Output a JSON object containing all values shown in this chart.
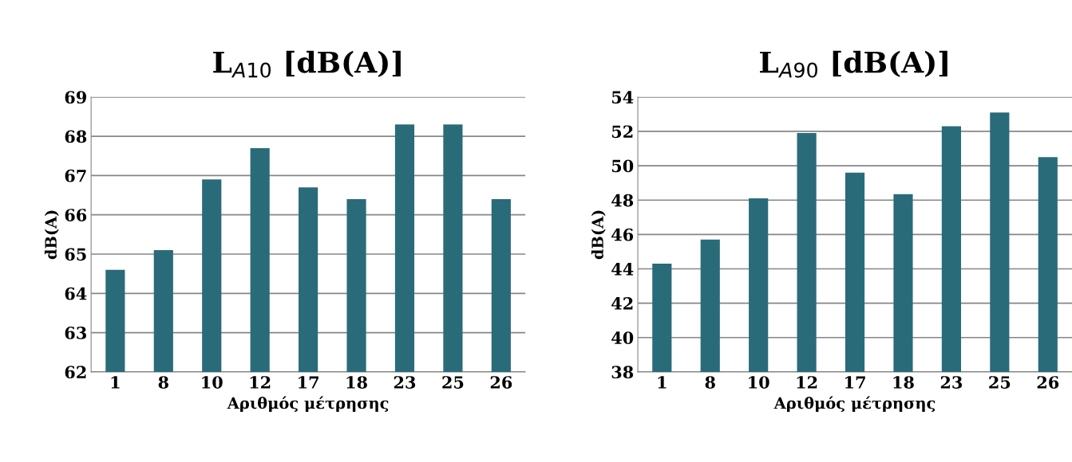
{
  "chart_data": [
    {
      "type": "bar",
      "title": "L$_{A10}$ [dB(A)]",
      "xlabel": "Αριθμός μέτρησης",
      "ylabel": "dB(A)",
      "categories": [
        "1",
        "8",
        "10",
        "12",
        "17",
        "18",
        "23",
        "25",
        "26"
      ],
      "series": [
        {
          "color": "#2a6b7a",
          "values": [
            64.6,
            65.1,
            66.9,
            67.7,
            66.7,
            66.4,
            68.3,
            68.3,
            66.4
          ]
        }
      ],
      "ylim": [
        62,
        69
      ],
      "yticks": [
        62,
        63,
        64,
        65,
        66,
        67,
        68,
        69
      ],
      "grid": "y",
      "legend": false
    },
    {
      "type": "bar",
      "title": "L$_{A90}$ [dB(A)]",
      "xlabel": "Αριθμός μέτρησης",
      "ylabel": "dB(A)",
      "categories": [
        "1",
        "8",
        "10",
        "12",
        "17",
        "18",
        "23",
        "25",
        "26"
      ],
      "series": [
        {
          "color": "#2a6b7a",
          "values": [
            44.3,
            45.7,
            48.1,
            51.9,
            49.6,
            48.35,
            52.3,
            53.1,
            50.5
          ]
        }
      ],
      "ylim": [
        38,
        54
      ],
      "yticks": [
        38,
        40,
        42,
        44,
        46,
        48,
        50,
        52,
        54
      ],
      "grid": "y",
      "legend": false
    }
  ]
}
